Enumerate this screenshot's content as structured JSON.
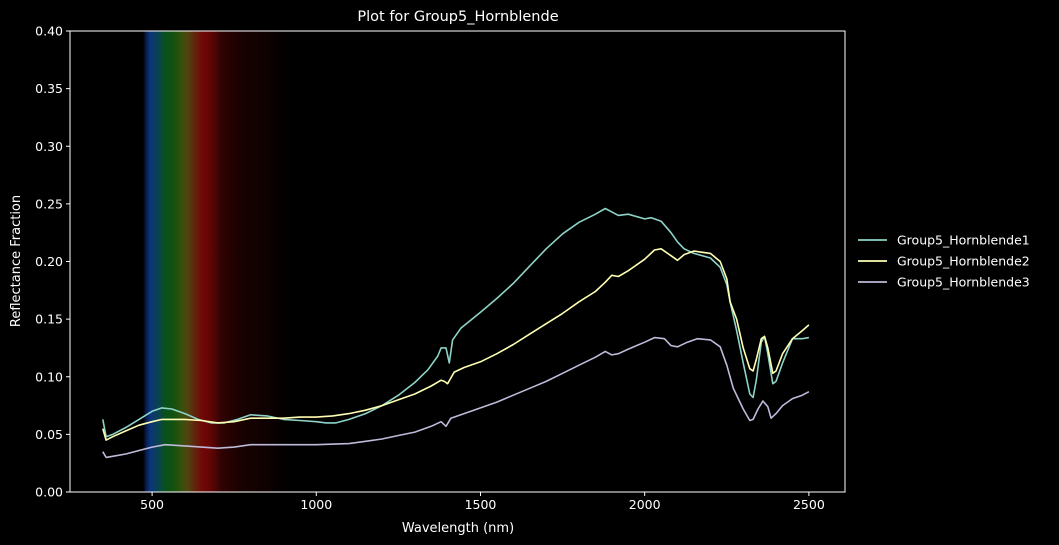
{
  "chart_data": {
    "type": "line",
    "title": "Plot for Group5_Hornblende",
    "xlabel": "Wavelength (nm)",
    "ylabel": "Reflectance Fraction",
    "xlim": [
      250,
      2610
    ],
    "ylim": [
      0.0,
      0.4
    ],
    "x_ticks": [
      500,
      1000,
      1500,
      2000,
      2500
    ],
    "x_tick_labels": [
      "500",
      "1000",
      "1500",
      "2000",
      "2500"
    ],
    "y_ticks": [
      0.0,
      0.05,
      0.1,
      0.15,
      0.2,
      0.25,
      0.3,
      0.35,
      0.4
    ],
    "y_tick_labels": [
      "0.00",
      "0.05",
      "0.10",
      "0.15",
      "0.20",
      "0.25",
      "0.30",
      "0.35",
      "0.40"
    ],
    "grid": false,
    "legend_position": "right-outside",
    "background_color": "#000000",
    "visible_spectrum_band": true,
    "series": [
      {
        "name": "Group5_Hornblende1",
        "color": "#8dd3c7",
        "points": [
          [
            350,
            0.063
          ],
          [
            360,
            0.048
          ],
          [
            380,
            0.05
          ],
          [
            420,
            0.056
          ],
          [
            460,
            0.063
          ],
          [
            500,
            0.07
          ],
          [
            530,
            0.073
          ],
          [
            560,
            0.072
          ],
          [
            600,
            0.068
          ],
          [
            640,
            0.063
          ],
          [
            680,
            0.06
          ],
          [
            720,
            0.06
          ],
          [
            760,
            0.063
          ],
          [
            800,
            0.067
          ],
          [
            850,
            0.066
          ],
          [
            900,
            0.063
          ],
          [
            950,
            0.062
          ],
          [
            1000,
            0.061
          ],
          [
            1030,
            0.06
          ],
          [
            1060,
            0.06
          ],
          [
            1100,
            0.063
          ],
          [
            1150,
            0.068
          ],
          [
            1200,
            0.075
          ],
          [
            1250,
            0.084
          ],
          [
            1300,
            0.095
          ],
          [
            1340,
            0.106
          ],
          [
            1370,
            0.118
          ],
          [
            1380,
            0.125
          ],
          [
            1395,
            0.125
          ],
          [
            1405,
            0.112
          ],
          [
            1415,
            0.132
          ],
          [
            1440,
            0.142
          ],
          [
            1500,
            0.156
          ],
          [
            1550,
            0.168
          ],
          [
            1600,
            0.181
          ],
          [
            1650,
            0.196
          ],
          [
            1700,
            0.211
          ],
          [
            1750,
            0.224
          ],
          [
            1800,
            0.234
          ],
          [
            1850,
            0.241
          ],
          [
            1880,
            0.246
          ],
          [
            1900,
            0.243
          ],
          [
            1920,
            0.24
          ],
          [
            1950,
            0.241
          ],
          [
            2000,
            0.237
          ],
          [
            2020,
            0.238
          ],
          [
            2050,
            0.235
          ],
          [
            2080,
            0.225
          ],
          [
            2100,
            0.217
          ],
          [
            2120,
            0.211
          ],
          [
            2150,
            0.207
          ],
          [
            2200,
            0.203
          ],
          [
            2230,
            0.195
          ],
          [
            2250,
            0.18
          ],
          [
            2260,
            0.165
          ],
          [
            2280,
            0.14
          ],
          [
            2300,
            0.112
          ],
          [
            2320,
            0.085
          ],
          [
            2330,
            0.082
          ],
          [
            2340,
            0.097
          ],
          [
            2355,
            0.13
          ],
          [
            2365,
            0.135
          ],
          [
            2375,
            0.12
          ],
          [
            2390,
            0.094
          ],
          [
            2400,
            0.096
          ],
          [
            2420,
            0.112
          ],
          [
            2450,
            0.133
          ],
          [
            2480,
            0.133
          ],
          [
            2500,
            0.134
          ]
        ]
      },
      {
        "name": "Group5_Hornblende2",
        "color": "#ffffb3",
        "points": [
          [
            350,
            0.055
          ],
          [
            360,
            0.045
          ],
          [
            380,
            0.048
          ],
          [
            420,
            0.053
          ],
          [
            460,
            0.058
          ],
          [
            500,
            0.061
          ],
          [
            530,
            0.063
          ],
          [
            600,
            0.063
          ],
          [
            650,
            0.062
          ],
          [
            700,
            0.06
          ],
          [
            750,
            0.061
          ],
          [
            800,
            0.064
          ],
          [
            850,
            0.064
          ],
          [
            900,
            0.064
          ],
          [
            950,
            0.065
          ],
          [
            1000,
            0.065
          ],
          [
            1050,
            0.066
          ],
          [
            1100,
            0.068
          ],
          [
            1150,
            0.071
          ],
          [
            1200,
            0.075
          ],
          [
            1250,
            0.08
          ],
          [
            1300,
            0.085
          ],
          [
            1350,
            0.092
          ],
          [
            1380,
            0.097
          ],
          [
            1390,
            0.096
          ],
          [
            1400,
            0.094
          ],
          [
            1420,
            0.104
          ],
          [
            1450,
            0.108
          ],
          [
            1500,
            0.113
          ],
          [
            1550,
            0.12
          ],
          [
            1600,
            0.128
          ],
          [
            1650,
            0.137
          ],
          [
            1700,
            0.146
          ],
          [
            1750,
            0.155
          ],
          [
            1800,
            0.165
          ],
          [
            1850,
            0.174
          ],
          [
            1880,
            0.182
          ],
          [
            1900,
            0.188
          ],
          [
            1920,
            0.187
          ],
          [
            1950,
            0.192
          ],
          [
            2000,
            0.202
          ],
          [
            2030,
            0.21
          ],
          [
            2050,
            0.211
          ],
          [
            2080,
            0.205
          ],
          [
            2100,
            0.201
          ],
          [
            2120,
            0.206
          ],
          [
            2150,
            0.209
          ],
          [
            2200,
            0.207
          ],
          [
            2230,
            0.2
          ],
          [
            2250,
            0.185
          ],
          [
            2260,
            0.165
          ],
          [
            2280,
            0.15
          ],
          [
            2300,
            0.125
          ],
          [
            2320,
            0.107
          ],
          [
            2330,
            0.105
          ],
          [
            2340,
            0.115
          ],
          [
            2355,
            0.133
          ],
          [
            2365,
            0.135
          ],
          [
            2375,
            0.125
          ],
          [
            2390,
            0.103
          ],
          [
            2400,
            0.105
          ],
          [
            2420,
            0.12
          ],
          [
            2450,
            0.133
          ],
          [
            2480,
            0.14
          ],
          [
            2500,
            0.145
          ]
        ]
      },
      {
        "name": "Group5_Hornblende3",
        "color": "#bebada",
        "points": [
          [
            350,
            0.035
          ],
          [
            360,
            0.03
          ],
          [
            380,
            0.031
          ],
          [
            420,
            0.033
          ],
          [
            460,
            0.036
          ],
          [
            500,
            0.039
          ],
          [
            540,
            0.041
          ],
          [
            600,
            0.04
          ],
          [
            650,
            0.039
          ],
          [
            700,
            0.038
          ],
          [
            750,
            0.039
          ],
          [
            800,
            0.041
          ],
          [
            900,
            0.041
          ],
          [
            1000,
            0.041
          ],
          [
            1100,
            0.042
          ],
          [
            1150,
            0.044
          ],
          [
            1200,
            0.046
          ],
          [
            1250,
            0.049
          ],
          [
            1300,
            0.052
          ],
          [
            1350,
            0.057
          ],
          [
            1380,
            0.061
          ],
          [
            1395,
            0.057
          ],
          [
            1410,
            0.064
          ],
          [
            1450,
            0.068
          ],
          [
            1500,
            0.073
          ],
          [
            1550,
            0.078
          ],
          [
            1600,
            0.084
          ],
          [
            1650,
            0.09
          ],
          [
            1700,
            0.096
          ],
          [
            1750,
            0.103
          ],
          [
            1800,
            0.11
          ],
          [
            1850,
            0.117
          ],
          [
            1880,
            0.122
          ],
          [
            1900,
            0.119
          ],
          [
            1920,
            0.12
          ],
          [
            1950,
            0.124
          ],
          [
            2000,
            0.13
          ],
          [
            2030,
            0.134
          ],
          [
            2060,
            0.133
          ],
          [
            2080,
            0.127
          ],
          [
            2100,
            0.126
          ],
          [
            2130,
            0.13
          ],
          [
            2160,
            0.133
          ],
          [
            2200,
            0.132
          ],
          [
            2230,
            0.126
          ],
          [
            2250,
            0.11
          ],
          [
            2270,
            0.09
          ],
          [
            2300,
            0.072
          ],
          [
            2320,
            0.062
          ],
          [
            2330,
            0.063
          ],
          [
            2345,
            0.072
          ],
          [
            2360,
            0.079
          ],
          [
            2375,
            0.074
          ],
          [
            2385,
            0.064
          ],
          [
            2400,
            0.068
          ],
          [
            2420,
            0.075
          ],
          [
            2450,
            0.081
          ],
          [
            2480,
            0.084
          ],
          [
            2500,
            0.087
          ]
        ]
      }
    ]
  }
}
